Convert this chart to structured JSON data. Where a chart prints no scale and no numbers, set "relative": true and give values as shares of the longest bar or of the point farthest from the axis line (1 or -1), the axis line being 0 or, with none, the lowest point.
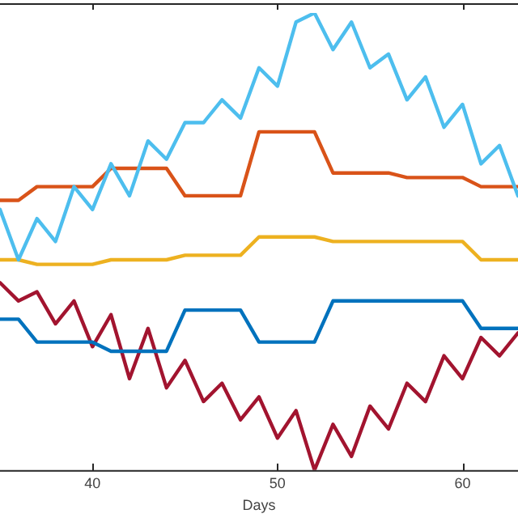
{
  "chart_data": {
    "type": "line",
    "xlabel": "Days",
    "relative": true,
    "xlim": [
      35,
      63
    ],
    "xticks": [
      40,
      50,
      60
    ],
    "tick_labels": "x",
    "grid": false,
    "legend": false,
    "marker": "none",
    "line_style": "solid",
    "x": [
      35,
      36,
      37,
      38,
      39,
      40,
      41,
      42,
      43,
      44,
      45,
      46,
      47,
      48,
      49,
      50,
      51,
      52,
      53,
      54,
      55,
      56,
      57,
      58,
      59,
      60,
      61,
      62,
      63
    ],
    "series": [
      {
        "color": "#4dbeee",
        "values": [
          0.57,
          0.46,
          0.55,
          0.5,
          0.62,
          0.57,
          0.67,
          0.6,
          0.72,
          0.68,
          0.76,
          0.76,
          0.81,
          0.77,
          0.88,
          0.84,
          0.98,
          1,
          0.92,
          0.98,
          0.88,
          0.91,
          0.81,
          0.86,
          0.75,
          0.8,
          0.67,
          0.71,
          0.6
        ]
      },
      {
        "color": "#d95319",
        "values": [
          0.59,
          0.59,
          0.62,
          0.62,
          0.62,
          0.62,
          0.66,
          0.66,
          0.66,
          0.66,
          0.6,
          0.6,
          0.6,
          0.6,
          0.74,
          0.74,
          0.74,
          0.74,
          0.65,
          0.65,
          0.65,
          0.65,
          0.64,
          0.64,
          0.64,
          0.64,
          0.62,
          0.62,
          0.62
        ]
      },
      {
        "color": "#edb120",
        "values": [
          0.46,
          0.46,
          0.45,
          0.45,
          0.45,
          0.45,
          0.46,
          0.46,
          0.46,
          0.46,
          0.47,
          0.47,
          0.47,
          0.47,
          0.51,
          0.51,
          0.51,
          0.51,
          0.5,
          0.5,
          0.5,
          0.5,
          0.5,
          0.5,
          0.5,
          0.5,
          0.46,
          0.46,
          0.46
        ]
      },
      {
        "color": "#0072bd",
        "values": [
          0.33,
          0.33,
          0.28,
          0.28,
          0.28,
          0.28,
          0.26,
          0.26,
          0.26,
          0.26,
          0.35,
          0.35,
          0.35,
          0.35,
          0.28,
          0.28,
          0.28,
          0.28,
          0.37,
          0.37,
          0.37,
          0.37,
          0.37,
          0.37,
          0.37,
          0.37,
          0.31,
          0.31,
          0.31
        ]
      },
      {
        "color": "#a2142f",
        "values": [
          0.41,
          0.37,
          0.39,
          0.32,
          0.37,
          0.27,
          0.34,
          0.2,
          0.31,
          0.18,
          0.24,
          0.15,
          0.19,
          0.11,
          0.16,
          0.07,
          0.13,
          0,
          0.1,
          0.03,
          0.14,
          0.09,
          0.19,
          0.15,
          0.25,
          0.2,
          0.29,
          0.25,
          0.3
        ]
      }
    ]
  }
}
